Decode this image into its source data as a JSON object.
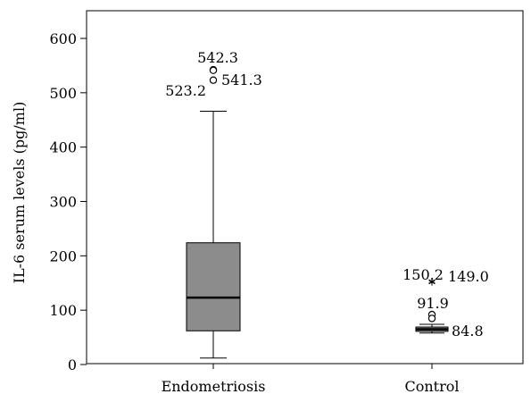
{
  "chart_data": {
    "type": "boxplot",
    "title": "",
    "xlabel": "",
    "ylabel": "IL-6 serum levels (pg/ml)",
    "ylim": [
      0,
      630
    ],
    "yticks": [
      0,
      100,
      200,
      300,
      400,
      500,
      600
    ],
    "grid": false,
    "categories": [
      "Endometriosis",
      "Control"
    ],
    "boxes": [
      {
        "category": "Endometriosis",
        "whisker_low": 12,
        "q1": 62,
        "median": 123,
        "q3": 224,
        "whisker_high": 466,
        "fill": "#8c8c8c",
        "outliers": [
          {
            "value": 542.3,
            "label": "542.3",
            "marker": "circle"
          },
          {
            "value": 541.3,
            "label": "541.3",
            "marker": "circle"
          },
          {
            "value": 523.2,
            "label": "523.2",
            "marker": "circle"
          }
        ]
      },
      {
        "category": "Control",
        "whisker_low": 58,
        "q1": 61,
        "median": 65,
        "q3": 69,
        "whisker_high": 74,
        "fill": "#8c8c8c",
        "outliers": [
          {
            "value": 150.2,
            "label": "150.2",
            "marker": "star"
          },
          {
            "value": 149.0,
            "label": "149.0",
            "marker": "star"
          },
          {
            "value": 91.9,
            "label": "91.9",
            "marker": "circle"
          },
          {
            "value": 84.8,
            "label": "84.8",
            "marker": "circle"
          }
        ]
      }
    ]
  }
}
